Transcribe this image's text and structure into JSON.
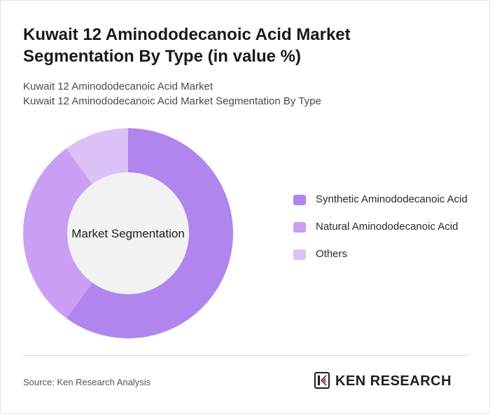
{
  "title": "Kuwait 12 Aminododecanoic Acid Market Segmentation By Type (in value %)",
  "subtitle_lines": [
    "Kuwait 12 Aminododecanoic Acid Market",
    "Kuwait 12 Aminododecanoic Acid Market Segmentation By Type"
  ],
  "chart_data": {
    "type": "pie",
    "center_label": "Market Segmentation",
    "categories": [
      "Synthetic Aminododecanoic Acid",
      "Natural Aminododecanoic Acid",
      "Others"
    ],
    "values": [
      60,
      30,
      10
    ],
    "colors": [
      "#b085ee",
      "#ca9ff3",
      "#dcc1f7"
    ],
    "hole_color": "#f2f2f2"
  },
  "footer": {
    "source": "Source: Ken Research Analysis",
    "logo_text": "KEN RESEARCH"
  }
}
